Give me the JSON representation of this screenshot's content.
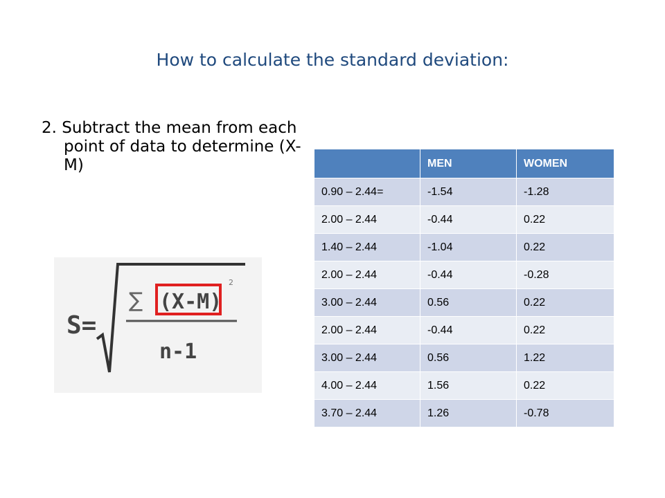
{
  "slide": {
    "title": "How to calculate the standard deviation:",
    "step": "2. Subtract the mean from each point of data to determine (X-M)"
  },
  "formula": {
    "lhs": "S=",
    "sigma": "∑",
    "numerator": "(X-M)",
    "exponent": "2",
    "denominator": "n-1",
    "highlight_color": "#e02020"
  },
  "table": {
    "headers": [
      "",
      "MEN",
      "WOMEN"
    ],
    "rows": [
      [
        "0.90 – 2.44=",
        "-1.54",
        "-1.28"
      ],
      [
        "2.00 – 2.44",
        "-0.44",
        "0.22"
      ],
      [
        "1.40 – 2.44",
        "-1.04",
        "0.22"
      ],
      [
        "2.00 – 2.44",
        "-0.44",
        "-0.28"
      ],
      [
        "3.00 – 2.44",
        "0.56",
        "0.22"
      ],
      [
        "2.00 – 2.44",
        "-0.44",
        "0.22"
      ],
      [
        "3.00 – 2.44",
        "0.56",
        "1.22"
      ],
      [
        "4.00 – 2.44",
        "1.56",
        "0.22"
      ],
      [
        "3.70 – 2.44",
        "1.26",
        "-0.78"
      ]
    ],
    "header_color": "#4f81bd",
    "row_colors": [
      "#cfd6e8",
      "#e9edf4"
    ]
  }
}
